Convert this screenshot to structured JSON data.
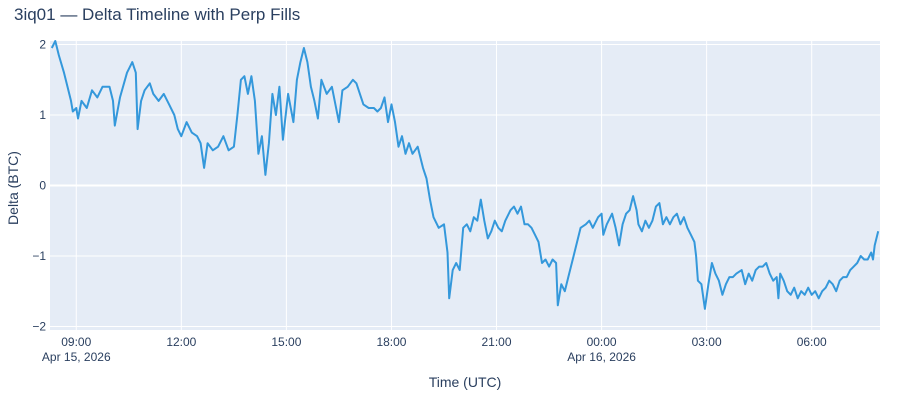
{
  "chart_data": {
    "type": "line",
    "title": "3iq01 — Delta Timeline with Perp Fills",
    "xlabel": "Time (UTC)",
    "ylabel": "Delta (BTC)",
    "colors": {
      "plot_bg": "#e5ecf6",
      "line": "#3498db",
      "grid": "#ffffff",
      "text": "#2a3f5f"
    },
    "x_unit": "hours since Apr 15, 2026 00:00 UTC",
    "xlim": [
      8.25,
      31.95
    ],
    "ylim": [
      -2.05,
      2.05
    ],
    "x_ticks": [
      {
        "value": 9,
        "label": "09:00",
        "sublabel": "Apr 15, 2026"
      },
      {
        "value": 12,
        "label": "12:00",
        "sublabel": ""
      },
      {
        "value": 15,
        "label": "15:00",
        "sublabel": ""
      },
      {
        "value": 18,
        "label": "18:00",
        "sublabel": ""
      },
      {
        "value": 21,
        "label": "21:00",
        "sublabel": ""
      },
      {
        "value": 24,
        "label": "00:00",
        "sublabel": "Apr 16, 2026"
      },
      {
        "value": 27,
        "label": "03:00",
        "sublabel": ""
      },
      {
        "value": 30,
        "label": "06:00",
        "sublabel": ""
      }
    ],
    "y_ticks": [
      {
        "value": 2,
        "label": "2"
      },
      {
        "value": 1,
        "label": "1"
      },
      {
        "value": 0,
        "label": "0"
      },
      {
        "value": -1,
        "label": "−1"
      },
      {
        "value": -2,
        "label": "−2"
      }
    ],
    "series": [
      {
        "name": "Delta",
        "points": [
          [
            8.3,
            1.95
          ],
          [
            8.4,
            2.05
          ],
          [
            8.5,
            1.85
          ],
          [
            8.65,
            1.6
          ],
          [
            8.75,
            1.4
          ],
          [
            8.85,
            1.2
          ],
          [
            8.9,
            1.05
          ],
          [
            9.0,
            1.1
          ],
          [
            9.05,
            0.95
          ],
          [
            9.15,
            1.2
          ],
          [
            9.3,
            1.1
          ],
          [
            9.45,
            1.35
          ],
          [
            9.6,
            1.25
          ],
          [
            9.75,
            1.4
          ],
          [
            9.95,
            1.4
          ],
          [
            10.05,
            1.2
          ],
          [
            10.1,
            0.85
          ],
          [
            10.25,
            1.25
          ],
          [
            10.45,
            1.6
          ],
          [
            10.6,
            1.75
          ],
          [
            10.7,
            1.6
          ],
          [
            10.75,
            0.8
          ],
          [
            10.85,
            1.2
          ],
          [
            10.95,
            1.35
          ],
          [
            11.1,
            1.45
          ],
          [
            11.2,
            1.3
          ],
          [
            11.35,
            1.2
          ],
          [
            11.5,
            1.3
          ],
          [
            11.65,
            1.15
          ],
          [
            11.8,
            1.0
          ],
          [
            11.9,
            0.8
          ],
          [
            12.0,
            0.7
          ],
          [
            12.15,
            0.9
          ],
          [
            12.3,
            0.75
          ],
          [
            12.45,
            0.7
          ],
          [
            12.55,
            0.6
          ],
          [
            12.65,
            0.25
          ],
          [
            12.75,
            0.6
          ],
          [
            12.9,
            0.5
          ],
          [
            13.05,
            0.55
          ],
          [
            13.2,
            0.7
          ],
          [
            13.35,
            0.5
          ],
          [
            13.5,
            0.55
          ],
          [
            13.6,
            1.0
          ],
          [
            13.7,
            1.5
          ],
          [
            13.8,
            1.55
          ],
          [
            13.9,
            1.3
          ],
          [
            14.0,
            1.55
          ],
          [
            14.1,
            1.2
          ],
          [
            14.2,
            0.45
          ],
          [
            14.3,
            0.7
          ],
          [
            14.4,
            0.15
          ],
          [
            14.5,
            0.6
          ],
          [
            14.6,
            1.3
          ],
          [
            14.7,
            1.0
          ],
          [
            14.8,
            1.4
          ],
          [
            14.9,
            0.65
          ],
          [
            15.05,
            1.3
          ],
          [
            15.2,
            0.9
          ],
          [
            15.3,
            1.5
          ],
          [
            15.4,
            1.75
          ],
          [
            15.5,
            1.95
          ],
          [
            15.6,
            1.75
          ],
          [
            15.7,
            1.4
          ],
          [
            15.8,
            1.2
          ],
          [
            15.9,
            0.95
          ],
          [
            16.0,
            1.5
          ],
          [
            16.15,
            1.3
          ],
          [
            16.3,
            1.4
          ],
          [
            16.4,
            1.15
          ],
          [
            16.5,
            0.9
          ],
          [
            16.6,
            1.35
          ],
          [
            16.75,
            1.4
          ],
          [
            16.9,
            1.5
          ],
          [
            17.0,
            1.45
          ],
          [
            17.1,
            1.3
          ],
          [
            17.2,
            1.15
          ],
          [
            17.35,
            1.1
          ],
          [
            17.5,
            1.1
          ],
          [
            17.6,
            1.05
          ],
          [
            17.7,
            1.1
          ],
          [
            17.8,
            1.25
          ],
          [
            17.9,
            0.9
          ],
          [
            18.0,
            1.15
          ],
          [
            18.1,
            0.9
          ],
          [
            18.2,
            0.55
          ],
          [
            18.3,
            0.7
          ],
          [
            18.4,
            0.45
          ],
          [
            18.5,
            0.6
          ],
          [
            18.6,
            0.45
          ],
          [
            18.75,
            0.55
          ],
          [
            18.9,
            0.25
          ],
          [
            19.0,
            0.1
          ],
          [
            19.1,
            -0.2
          ],
          [
            19.2,
            -0.45
          ],
          [
            19.35,
            -0.6
          ],
          [
            19.5,
            -0.55
          ],
          [
            19.6,
            -0.95
          ],
          [
            19.65,
            -1.6
          ],
          [
            19.75,
            -1.2
          ],
          [
            19.85,
            -1.1
          ],
          [
            19.95,
            -1.2
          ],
          [
            20.05,
            -0.6
          ],
          [
            20.15,
            -0.55
          ],
          [
            20.25,
            -0.65
          ],
          [
            20.35,
            -0.45
          ],
          [
            20.45,
            -0.5
          ],
          [
            20.55,
            -0.2
          ],
          [
            20.65,
            -0.5
          ],
          [
            20.75,
            -0.75
          ],
          [
            20.85,
            -0.65
          ],
          [
            20.95,
            -0.5
          ],
          [
            21.05,
            -0.6
          ],
          [
            21.15,
            -0.65
          ],
          [
            21.25,
            -0.5
          ],
          [
            21.4,
            -0.35
          ],
          [
            21.5,
            -0.3
          ],
          [
            21.6,
            -0.4
          ],
          [
            21.7,
            -0.3
          ],
          [
            21.8,
            -0.55
          ],
          [
            21.9,
            -0.55
          ],
          [
            22.0,
            -0.6
          ],
          [
            22.1,
            -0.7
          ],
          [
            22.2,
            -0.8
          ],
          [
            22.3,
            -1.1
          ],
          [
            22.4,
            -1.05
          ],
          [
            22.5,
            -1.15
          ],
          [
            22.6,
            -1.05
          ],
          [
            22.7,
            -1.1
          ],
          [
            22.75,
            -1.7
          ],
          [
            22.85,
            -1.4
          ],
          [
            22.95,
            -1.5
          ],
          [
            23.05,
            -1.3
          ],
          [
            23.2,
            -1.0
          ],
          [
            23.3,
            -0.8
          ],
          [
            23.4,
            -0.6
          ],
          [
            23.55,
            -0.55
          ],
          [
            23.65,
            -0.5
          ],
          [
            23.75,
            -0.6
          ],
          [
            23.9,
            -0.45
          ],
          [
            24.0,
            -0.4
          ],
          [
            24.05,
            -0.7
          ],
          [
            24.15,
            -0.55
          ],
          [
            24.3,
            -0.4
          ],
          [
            24.4,
            -0.6
          ],
          [
            24.5,
            -0.85
          ],
          [
            24.6,
            -0.55
          ],
          [
            24.7,
            -0.4
          ],
          [
            24.8,
            -0.35
          ],
          [
            24.9,
            -0.15
          ],
          [
            25.0,
            -0.35
          ],
          [
            25.05,
            -0.55
          ],
          [
            25.15,
            -0.65
          ],
          [
            25.25,
            -0.5
          ],
          [
            25.35,
            -0.6
          ],
          [
            25.45,
            -0.5
          ],
          [
            25.55,
            -0.3
          ],
          [
            25.65,
            -0.25
          ],
          [
            25.75,
            -0.55
          ],
          [
            25.85,
            -0.45
          ],
          [
            25.95,
            -0.55
          ],
          [
            26.05,
            -0.45
          ],
          [
            26.15,
            -0.4
          ],
          [
            26.25,
            -0.55
          ],
          [
            26.35,
            -0.45
          ],
          [
            26.45,
            -0.6
          ],
          [
            26.55,
            -0.7
          ],
          [
            26.65,
            -0.8
          ],
          [
            26.7,
            -1.0
          ],
          [
            26.75,
            -1.35
          ],
          [
            26.85,
            -1.4
          ],
          [
            26.95,
            -1.75
          ],
          [
            27.05,
            -1.4
          ],
          [
            27.15,
            -1.1
          ],
          [
            27.25,
            -1.25
          ],
          [
            27.35,
            -1.35
          ],
          [
            27.45,
            -1.55
          ],
          [
            27.55,
            -1.4
          ],
          [
            27.65,
            -1.3
          ],
          [
            27.75,
            -1.3
          ],
          [
            27.85,
            -1.25
          ],
          [
            28.0,
            -1.2
          ],
          [
            28.1,
            -1.4
          ],
          [
            28.2,
            -1.25
          ],
          [
            28.3,
            -1.35
          ],
          [
            28.4,
            -1.2
          ],
          [
            28.5,
            -1.15
          ],
          [
            28.6,
            -1.15
          ],
          [
            28.7,
            -1.1
          ],
          [
            28.8,
            -1.25
          ],
          [
            28.9,
            -1.35
          ],
          [
            29.0,
            -1.3
          ],
          [
            29.05,
            -1.6
          ],
          [
            29.1,
            -1.25
          ],
          [
            29.2,
            -1.35
          ],
          [
            29.3,
            -1.5
          ],
          [
            29.4,
            -1.55
          ],
          [
            29.5,
            -1.45
          ],
          [
            29.6,
            -1.6
          ],
          [
            29.7,
            -1.5
          ],
          [
            29.8,
            -1.55
          ],
          [
            29.9,
            -1.45
          ],
          [
            30.0,
            -1.55
          ],
          [
            30.1,
            -1.5
          ],
          [
            30.2,
            -1.6
          ],
          [
            30.3,
            -1.5
          ],
          [
            30.4,
            -1.45
          ],
          [
            30.5,
            -1.35
          ],
          [
            30.6,
            -1.4
          ],
          [
            30.7,
            -1.5
          ],
          [
            30.8,
            -1.35
          ],
          [
            30.9,
            -1.3
          ],
          [
            31.0,
            -1.3
          ],
          [
            31.1,
            -1.2
          ],
          [
            31.2,
            -1.15
          ],
          [
            31.3,
            -1.1
          ],
          [
            31.4,
            -1.0
          ],
          [
            31.5,
            -1.05
          ],
          [
            31.6,
            -1.05
          ],
          [
            31.7,
            -0.95
          ],
          [
            31.75,
            -1.05
          ],
          [
            31.8,
            -0.85
          ],
          [
            31.9,
            -0.65
          ]
        ]
      }
    ]
  }
}
